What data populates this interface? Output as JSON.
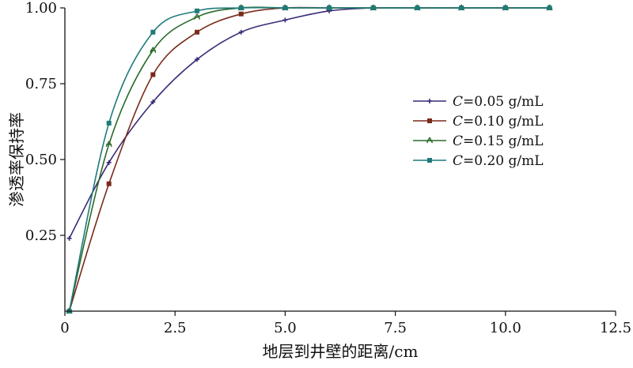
{
  "chart_data": {
    "type": "line",
    "title": "",
    "xlabel": "地层到井壁的距离/cm",
    "ylabel": "渗透率保持率",
    "xlim": [
      0,
      12.5
    ],
    "ylim": [
      0,
      1.0
    ],
    "x_ticks": [
      0,
      2.5,
      5.0,
      7.5,
      10.0,
      12.5
    ],
    "x_tick_labels": [
      "0",
      "2.5",
      "5.0",
      "7.5",
      "10.0",
      "12.5"
    ],
    "y_ticks": [
      0.25,
      0.5,
      0.75,
      1.0
    ],
    "y_tick_labels": [
      "0.25",
      "0.50",
      "0.75",
      "1.00"
    ],
    "grid": false,
    "legend_position": "right-middle",
    "series": [
      {
        "name": "C=0.05 g/mL",
        "legend_italic": "C",
        "legend_rest": "=0.05 g/mL",
        "color": "#3a2a78",
        "marker": "plus",
        "x": [
          0.1,
          1,
          2,
          3,
          4,
          5,
          6,
          7,
          8,
          9,
          10,
          11
        ],
        "y": [
          0.24,
          0.49,
          0.69,
          0.83,
          0.92,
          0.96,
          0.99,
          1.0,
          1.0,
          1.0,
          1.0,
          1.0
        ]
      },
      {
        "name": "C=0.10 g/mL",
        "legend_italic": "C",
        "legend_rest": "=0.10 g/mL",
        "color": "#7a2a1a",
        "marker": "square",
        "x": [
          0.1,
          1,
          2,
          3,
          4,
          5,
          6,
          7,
          8,
          9,
          10,
          11
        ],
        "y": [
          0.0,
          0.42,
          0.78,
          0.92,
          0.98,
          1.0,
          1.0,
          1.0,
          1.0,
          1.0,
          1.0,
          1.0
        ]
      },
      {
        "name": "C=0.15 g/mL",
        "legend_italic": "C",
        "legend_rest": "=0.15 g/mL",
        "color": "#2a6a2a",
        "marker": "star",
        "x": [
          0.1,
          1,
          2,
          3,
          4,
          5,
          6,
          7,
          8,
          9,
          10,
          11
        ],
        "y": [
          0.0,
          0.55,
          0.86,
          0.97,
          1.0,
          1.0,
          1.0,
          1.0,
          1.0,
          1.0,
          1.0,
          1.0
        ]
      },
      {
        "name": "C=0.20 g/mL",
        "legend_italic": "C",
        "legend_rest": "=0.20 g/mL",
        "color": "#1f7a7a",
        "marker": "square",
        "x": [
          0.1,
          1,
          2,
          3,
          4,
          5,
          6,
          7,
          8,
          9,
          10,
          11
        ],
        "y": [
          0.0,
          0.62,
          0.92,
          0.99,
          1.0,
          1.0,
          1.0,
          1.0,
          1.0,
          1.0,
          1.0,
          1.0
        ]
      }
    ]
  }
}
